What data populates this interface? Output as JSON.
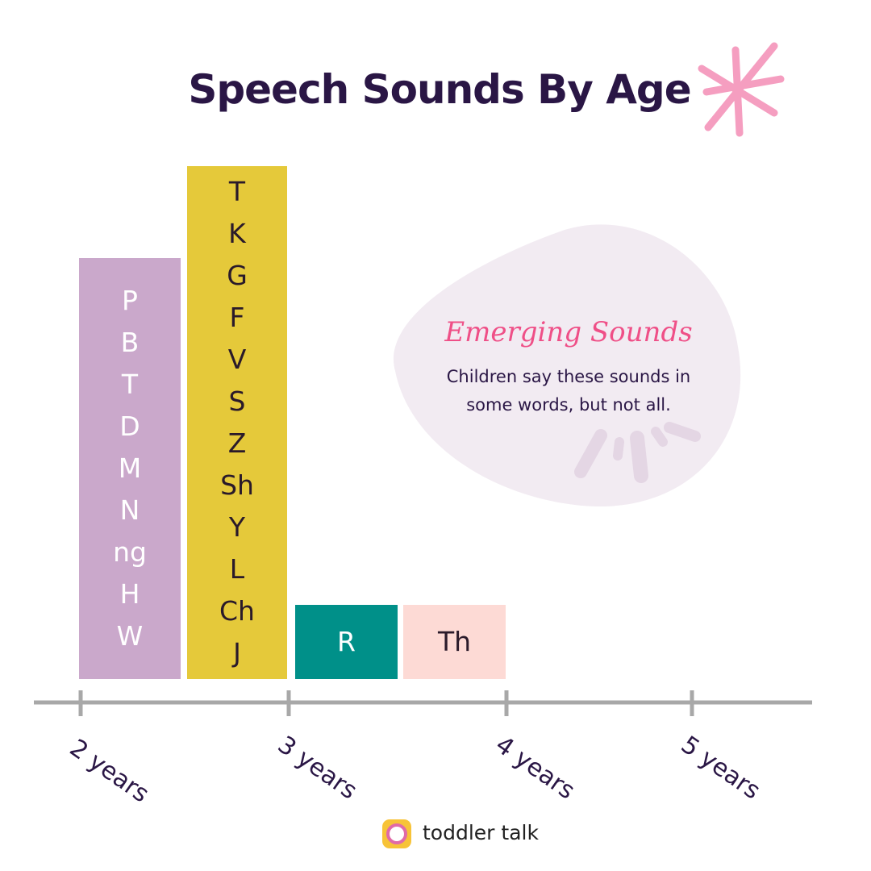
{
  "title": "Speech Sounds By Age",
  "groups": [
    {
      "sounds": [
        "P",
        "B",
        "T",
        "D",
        "M",
        "N",
        "ng",
        "H",
        "W"
      ]
    },
    {
      "sounds": [
        "T",
        "K",
        "G",
        "F",
        "V",
        "S",
        "Z",
        "Sh",
        "Y",
        "L",
        "Ch",
        "J"
      ]
    },
    {
      "sounds": [
        "R"
      ]
    },
    {
      "sounds": [
        "Th"
      ]
    }
  ],
  "axis_labels": [
    "2 years",
    "3 years",
    "4 years",
    "5 years"
  ],
  "callout": {
    "title": "Emerging Sounds",
    "text": "Children say these sounds in some words, but not all."
  },
  "brand": "toddler talk"
}
